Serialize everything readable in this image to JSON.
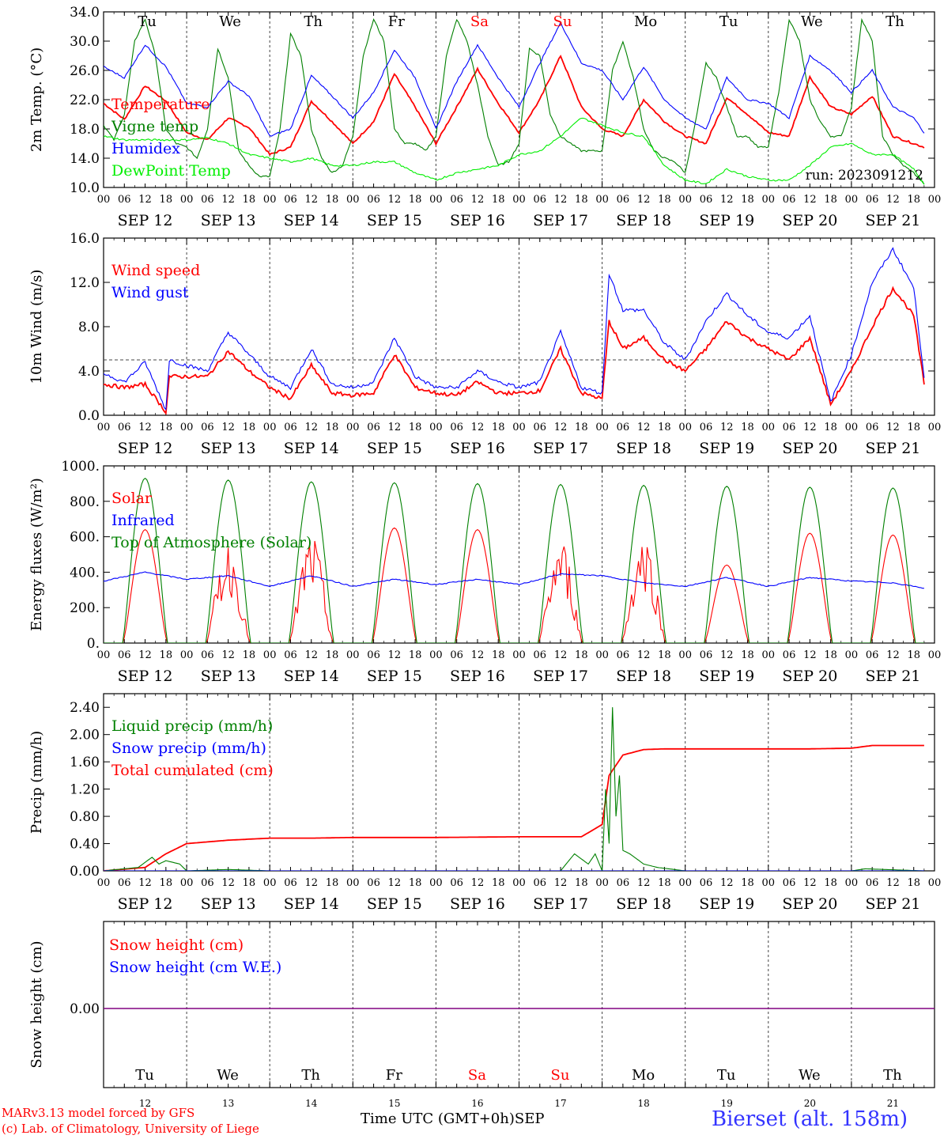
{
  "chart_data": [
    {
      "type": "line",
      "ylabel": "2m Temp. (°C)",
      "ylim": [
        10.0,
        34.0
      ],
      "ytick_labels": [
        "10.0",
        "14.0",
        "18.0",
        "22.0",
        "26.0",
        "30.0",
        "34.0"
      ],
      "legend": [
        "Temperature",
        "Vigne temp",
        "Humidex",
        "DewPoint Temp"
      ],
      "annotation": "run: 2023091212",
      "series": [
        {
          "name": "Temperature",
          "color": "#ff0000",
          "x": [
            0,
            6,
            12,
            18,
            24,
            30,
            36,
            42,
            48,
            54,
            60,
            66,
            72,
            78,
            84,
            90,
            96,
            102,
            108,
            114,
            120,
            126,
            132,
            138,
            144,
            150,
            156,
            162,
            168,
            174,
            180,
            186,
            192,
            198,
            204,
            210,
            216,
            222,
            228,
            234,
            237
          ],
          "values": [
            21.5,
            19.3,
            23.9,
            21.8,
            17.5,
            16.5,
            19.5,
            18.2,
            14.5,
            15.5,
            21.8,
            19.0,
            16.0,
            19.0,
            25.5,
            21.0,
            16.0,
            21.0,
            26.2,
            21.5,
            17.5,
            22.0,
            28.0,
            21.0,
            18.0,
            17.0,
            22.0,
            19.0,
            17.0,
            16.0,
            22.3,
            20.0,
            17.5,
            17.0,
            25.1,
            21.0,
            20.0,
            22.5,
            17.0,
            16.0,
            15.5
          ]
        },
        {
          "name": "Vigne temp",
          "color": "#008000",
          "x": [
            0,
            3,
            6,
            9,
            12,
            15,
            18,
            21,
            24,
            27,
            30,
            33,
            36,
            39,
            42,
            45,
            48,
            51,
            54,
            57,
            60,
            63,
            66,
            69,
            72,
            75,
            78,
            81,
            84,
            87,
            90,
            93,
            96,
            99,
            102,
            105,
            108,
            111,
            114,
            117,
            120,
            123,
            126,
            129,
            132,
            135,
            138,
            141,
            144,
            147,
            150,
            153,
            156,
            159,
            162,
            165,
            168,
            171,
            174,
            177,
            180,
            183,
            186,
            189,
            192,
            195,
            198,
            201,
            204,
            207,
            210,
            213,
            216,
            219,
            222,
            225,
            228,
            231,
            234,
            237
          ],
          "values": [
            18.5,
            16.5,
            20.0,
            30.0,
            33.0,
            28.0,
            18.0,
            16.0,
            15.5,
            14.0,
            18.0,
            29.0,
            25.0,
            15.0,
            13.0,
            11.5,
            11.5,
            18.0,
            31.0,
            28.0,
            18.0,
            14.0,
            12.0,
            13.0,
            17.0,
            28.0,
            33.0,
            30.0,
            18.0,
            16.0,
            16.0,
            15.0,
            17.0,
            28.0,
            33.0,
            30.0,
            24.0,
            17.0,
            13.0,
            13.5,
            16.0,
            29.0,
            28.0,
            20.0,
            17.0,
            16.0,
            15.0,
            15.0,
            15.0,
            26.0,
            30.0,
            25.0,
            18.0,
            15.0,
            14.0,
            13.5,
            12.0,
            19.0,
            27.0,
            25.0,
            21.0,
            17.0,
            17.0,
            15.5,
            15.5,
            23.0,
            33.0,
            30.0,
            22.0,
            19.0,
            17.0,
            17.0,
            21.0,
            33.0,
            30.0,
            17.0,
            14.5,
            13.0,
            12.0,
            10.5
          ]
        },
        {
          "name": "Humidex",
          "color": "#0000ff",
          "x": [
            0,
            6,
            12,
            18,
            24,
            30,
            36,
            42,
            48,
            54,
            60,
            66,
            72,
            78,
            84,
            90,
            96,
            102,
            108,
            114,
            120,
            126,
            132,
            138,
            144,
            150,
            156,
            162,
            168,
            174,
            180,
            186,
            192,
            198,
            204,
            210,
            216,
            222,
            228,
            234,
            237
          ],
          "values": [
            26.5,
            25.0,
            29.5,
            26.5,
            21.5,
            21.0,
            24.5,
            22.5,
            17.0,
            18.0,
            25.3,
            22.5,
            19.5,
            23.0,
            28.8,
            25.0,
            18.0,
            24.5,
            29.5,
            25.0,
            21.0,
            27.0,
            32.5,
            27.0,
            26.0,
            22.0,
            26.5,
            22.0,
            19.5,
            18.0,
            25.0,
            22.0,
            21.5,
            19.5,
            28.0,
            26.0,
            23.0,
            26.0,
            21.0,
            19.5,
            17.5
          ]
        },
        {
          "name": "DewPoint Temp",
          "color": "#00ee00",
          "x": [
            0,
            6,
            12,
            18,
            24,
            30,
            36,
            42,
            48,
            54,
            60,
            66,
            72,
            78,
            84,
            90,
            96,
            102,
            108,
            114,
            120,
            126,
            132,
            138,
            144,
            150,
            156,
            162,
            168,
            174,
            180,
            186,
            192,
            198,
            204,
            210,
            216,
            222,
            228,
            234,
            237
          ],
          "values": [
            17.0,
            16.5,
            16.5,
            16.5,
            16.5,
            16.8,
            16.0,
            14.5,
            14.0,
            13.5,
            14.0,
            13.0,
            13.0,
            13.5,
            13.5,
            12.0,
            11.0,
            12.0,
            12.5,
            13.0,
            14.5,
            15.0,
            17.0,
            19.5,
            18.5,
            17.5,
            17.0,
            13.0,
            11.0,
            10.5,
            12.5,
            11.5,
            11.0,
            11.0,
            13.0,
            15.5,
            16.0,
            14.5,
            14.5,
            12.5,
            10.5
          ]
        }
      ]
    },
    {
      "type": "line",
      "ylabel": "10m Wind (m/s)",
      "ylim": [
        0.0,
        16.0
      ],
      "ytick_labels": [
        "0.0",
        "4.0",
        "8.0",
        "12.0",
        "16.0"
      ],
      "reference_line": 5,
      "legend": [
        "Wind speed",
        "Wind gust"
      ],
      "series": [
        {
          "name": "Wind speed",
          "color": "#ff0000",
          "x": [
            0,
            6,
            12,
            18,
            19,
            24,
            30,
            36,
            42,
            48,
            54,
            60,
            66,
            72,
            78,
            84,
            90,
            96,
            102,
            108,
            114,
            120,
            126,
            132,
            138,
            144,
            146,
            150,
            156,
            162,
            168,
            174,
            180,
            186,
            192,
            198,
            204,
            210,
            216,
            222,
            228,
            234,
            237
          ],
          "values": [
            2.8,
            2.5,
            2.8,
            0.3,
            3.5,
            3.5,
            3.5,
            5.8,
            4.0,
            2.5,
            1.5,
            4.5,
            2.0,
            1.8,
            2.0,
            5.5,
            2.5,
            2.0,
            1.8,
            3.0,
            2.0,
            2.0,
            2.2,
            6.0,
            2.0,
            1.5,
            8.5,
            6.0,
            7.0,
            5.0,
            4.0,
            6.0,
            8.5,
            7.0,
            6.0,
            5.0,
            7.0,
            1.0,
            4.0,
            8.0,
            11.5,
            9.0,
            2.8
          ]
        },
        {
          "name": "Wind gust",
          "color": "#0000ff",
          "x": [
            0,
            6,
            12,
            18,
            19,
            24,
            30,
            36,
            42,
            48,
            54,
            60,
            66,
            72,
            78,
            84,
            90,
            96,
            102,
            108,
            114,
            120,
            126,
            132,
            138,
            144,
            146,
            150,
            156,
            162,
            168,
            174,
            180,
            186,
            192,
            198,
            204,
            210,
            216,
            222,
            228,
            234,
            237
          ],
          "values": [
            3.8,
            3.0,
            4.8,
            0.5,
            5.0,
            4.5,
            4.0,
            7.5,
            5.5,
            3.5,
            2.5,
            6.0,
            2.8,
            2.5,
            3.0,
            7.0,
            3.5,
            2.5,
            2.5,
            4.0,
            3.0,
            2.5,
            3.0,
            7.5,
            2.5,
            2.0,
            12.8,
            9.5,
            9.5,
            6.5,
            5.0,
            8.5,
            11.0,
            9.0,
            7.5,
            7.0,
            9.0,
            1.2,
            5.5,
            12.0,
            15.0,
            11.5,
            3.5
          ]
        }
      ]
    },
    {
      "type": "line",
      "ylabel": "Energy fluxes (W/m²)",
      "ylim": [
        0,
        1000
      ],
      "ytick_labels": [
        "0.",
        "200.",
        "400.",
        "600.",
        "800.",
        "1000."
      ],
      "legend": [
        "Solar",
        "Infrared",
        "Top of Atmosphere (Solar)"
      ],
      "series": [
        {
          "name": "Solar",
          "color": "#ff0000",
          "peaks": [
            640,
            580,
            620,
            650,
            640,
            600,
            630,
            440,
            620,
            610
          ]
        },
        {
          "name": "Infrared",
          "color": "#0000ff",
          "x": [
            0,
            12,
            24,
            36,
            48,
            60,
            72,
            84,
            96,
            108,
            120,
            132,
            144,
            156,
            168,
            180,
            192,
            204,
            216,
            228,
            237
          ],
          "values": [
            350,
            400,
            360,
            380,
            320,
            380,
            320,
            360,
            330,
            360,
            330,
            390,
            380,
            340,
            320,
            370,
            320,
            370,
            350,
            340,
            310
          ]
        },
        {
          "name": "Top of Atmosphere (Solar)",
          "color": "#008000",
          "peaks": [
            930,
            920,
            910,
            905,
            900,
            895,
            890,
            885,
            880,
            875
          ]
        }
      ]
    },
    {
      "type": "line",
      "ylabel": "Precip (mm/h)",
      "ylim": [
        0.0,
        2.6
      ],
      "ytick_labels": [
        "0.00",
        "0.40",
        "0.80",
        "1.20",
        "1.60",
        "2.00",
        "2.40"
      ],
      "legend": [
        "Liquid precip (mm/h)",
        "Snow precip (mm/h)",
        "Total cumulated (cm)"
      ],
      "series": [
        {
          "name": "Total cumulated (cm)",
          "color": "#ff0000",
          "x": [
            0,
            12,
            18,
            24,
            36,
            48,
            60,
            72,
            96,
            120,
            138,
            144,
            146,
            150,
            156,
            162,
            168,
            180,
            192,
            204,
            216,
            222,
            237
          ],
          "values": [
            0.0,
            0.05,
            0.25,
            0.4,
            0.45,
            0.48,
            0.48,
            0.49,
            0.49,
            0.5,
            0.5,
            0.68,
            1.4,
            1.7,
            1.78,
            1.79,
            1.79,
            1.79,
            1.79,
            1.79,
            1.8,
            1.84,
            1.84
          ]
        },
        {
          "name": "Liquid precip (mm/h)",
          "color": "#008000",
          "x": [
            0,
            10,
            14,
            16,
            18,
            22,
            24,
            36,
            48,
            132,
            136,
            140,
            142,
            144,
            145,
            146,
            147,
            148,
            149,
            150,
            152,
            156,
            160,
            168,
            216,
            220,
            237
          ],
          "values": [
            0,
            0.05,
            0.2,
            0.1,
            0.15,
            0.1,
            0,
            0.02,
            0,
            0,
            0.25,
            0.1,
            0.25,
            0,
            1.2,
            0.4,
            2.4,
            0.8,
            1.4,
            0.3,
            0.25,
            0.1,
            0.05,
            0,
            0,
            0.03,
            0
          ]
        },
        {
          "name": "Snow precip (mm/h)",
          "color": "#0000ff",
          "x": [
            0,
            237
          ],
          "values": [
            0,
            0
          ]
        }
      ]
    },
    {
      "type": "line",
      "ylabel": "Snow height (cm)",
      "ytick_labels": [
        "0.00"
      ],
      "legend": [
        "Snow height (cm)",
        "Snow height (cm W.E.)"
      ],
      "series": [
        {
          "name": "Snow height (cm)",
          "color": "#ff0000",
          "x": [
            0,
            237
          ],
          "values": [
            0,
            0
          ]
        },
        {
          "name": "Snow height (cm W.E.)",
          "color": "#0000ff",
          "x": [
            0,
            237
          ],
          "values": [
            0,
            0
          ]
        }
      ]
    }
  ],
  "hour_ticks": [
    "00",
    "06",
    "12",
    "18"
  ],
  "end_hour_tick": "00",
  "day_labels": [
    "SEP 12",
    "SEP 13",
    "SEP 14",
    "SEP 15",
    "SEP 16",
    "SEP 17",
    "SEP 18",
    "SEP 19",
    "SEP 20",
    "SEP 21"
  ],
  "weekdays": [
    {
      "label": "Tu",
      "color": "#000000"
    },
    {
      "label": "We",
      "color": "#000000"
    },
    {
      "label": "Th",
      "color": "#000000"
    },
    {
      "label": "Fr",
      "color": "#000000"
    },
    {
      "label": "Sa",
      "color": "#ff0000"
    },
    {
      "label": "Su",
      "color": "#ff0000"
    },
    {
      "label": "Mo",
      "color": "#000000"
    },
    {
      "label": "Tu",
      "color": "#000000"
    },
    {
      "label": "We",
      "color": "#000000"
    },
    {
      "label": "Th",
      "color": "#000000"
    }
  ],
  "bottom_day_numbers": [
    "12",
    "13",
    "14",
    "15",
    "16",
    "17",
    "18",
    "19",
    "20",
    "21"
  ],
  "footer": {
    "model": "MARv3.13 model forced by GFS",
    "copyright": "(c) Lab. of Climatology, University of Liege",
    "time_axis": "Time UTC (GMT+0h)",
    "month": "SEP",
    "station": "Bierset (alt. 158m)"
  }
}
